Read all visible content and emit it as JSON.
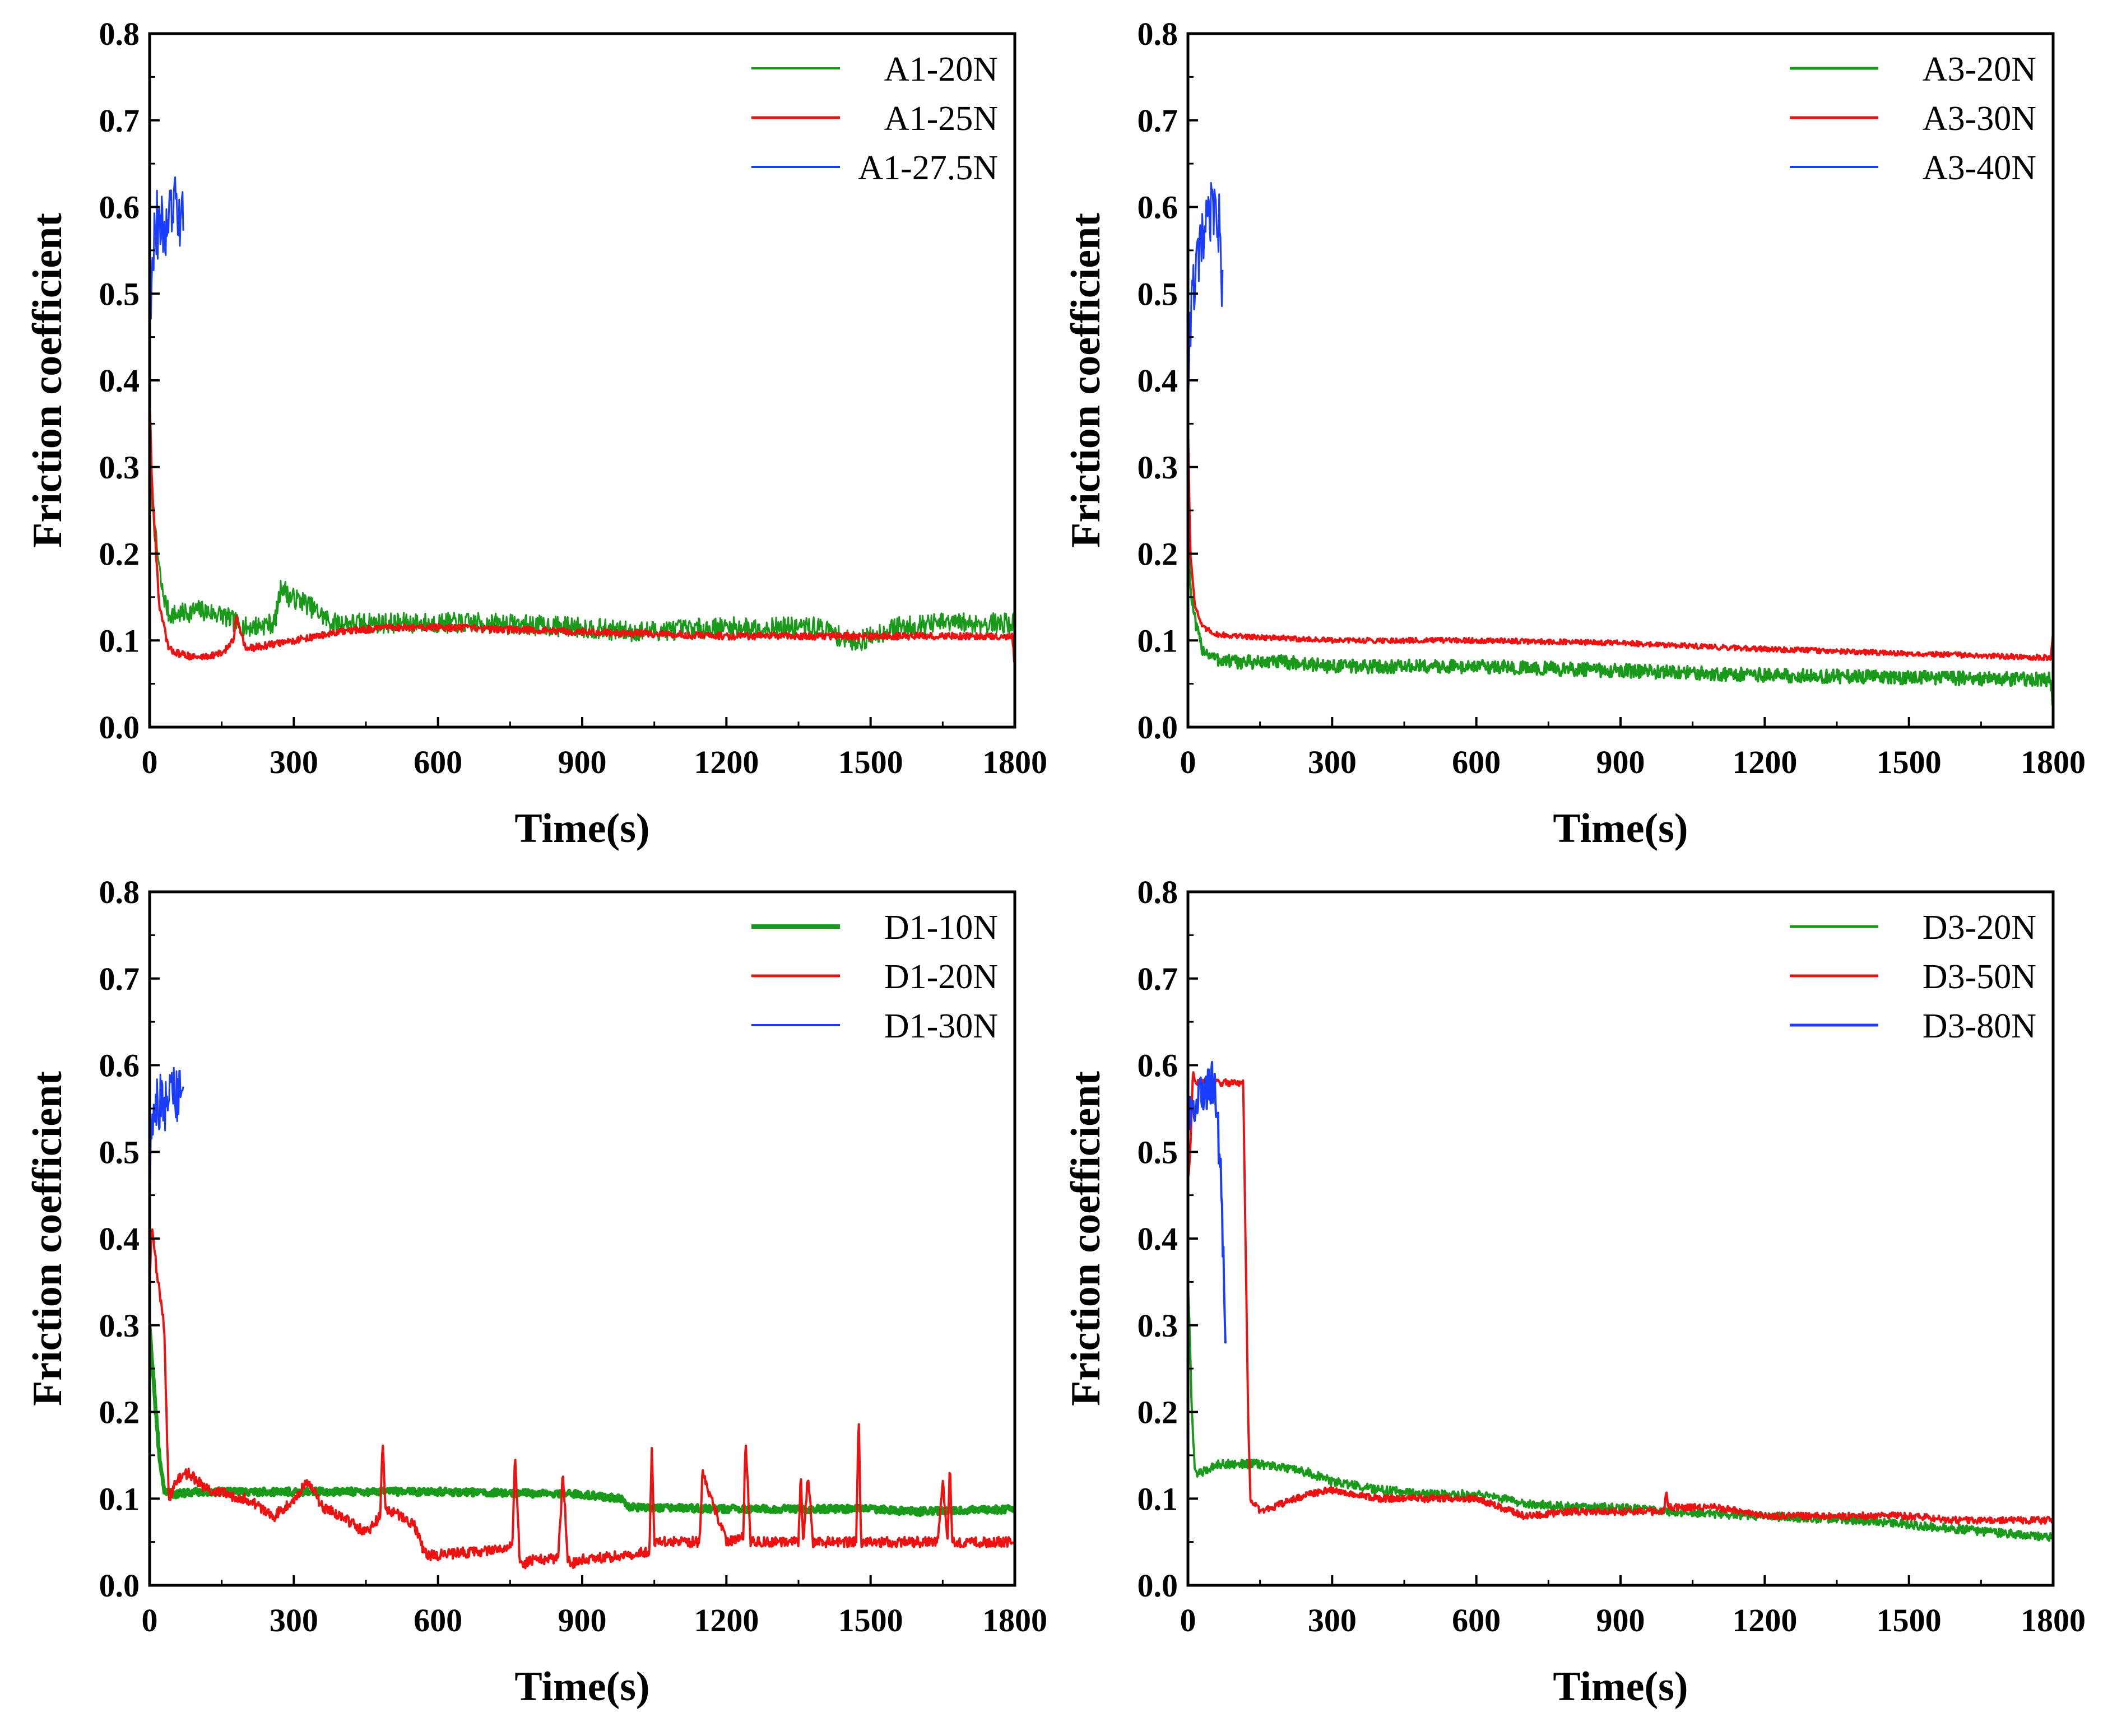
{
  "chart_data": [
    {
      "type": "line",
      "panel": "top-left",
      "xlabel": "Time(s)",
      "ylabel": "Friction coefficient",
      "xlim": [
        0,
        1800
      ],
      "ylim": [
        0,
        0.8
      ],
      "xticks": [
        "0",
        "300",
        "600",
        "900",
        "1200",
        "1500",
        "1800"
      ],
      "yticks": [
        "0.0",
        "0.1",
        "0.2",
        "0.3",
        "0.4",
        "0.5",
        "0.6",
        "0.7",
        "0.8"
      ],
      "legend_position": "top-right",
      "series": [
        {
          "name": "A1-20N",
          "color": "#1a9a1a",
          "width": 3,
          "noise": 0.012,
          "x": [
            0,
            10,
            25,
            40,
            60,
            100,
            150,
            180,
            200,
            260,
            275,
            290,
            320,
            380,
            500,
            700,
            900,
            1000,
            1200,
            1400,
            1450,
            1480,
            1550,
            1650,
            1800
          ],
          "y": [
            0.3,
            0.23,
            0.16,
            0.13,
            0.13,
            0.135,
            0.13,
            0.12,
            0.115,
            0.12,
            0.165,
            0.15,
            0.145,
            0.12,
            0.12,
            0.12,
            0.115,
            0.11,
            0.115,
            0.115,
            0.1,
            0.1,
            0.115,
            0.12,
            0.12
          ]
        },
        {
          "name": "A1-25N",
          "color": "#ee1111",
          "width": 4,
          "noise": 0.004,
          "x": [
            0,
            5,
            20,
            40,
            60,
            100,
            150,
            175,
            180,
            200,
            250,
            300,
            400,
            500,
            600,
            900,
            1200,
            1500,
            1795,
            1800
          ],
          "y": [
            0.38,
            0.28,
            0.14,
            0.09,
            0.085,
            0.08,
            0.085,
            0.1,
            0.13,
            0.09,
            0.095,
            0.1,
            0.11,
            0.115,
            0.115,
            0.11,
            0.105,
            0.105,
            0.105,
            0.07
          ]
        },
        {
          "name": "A1-27.5N",
          "color": "#1a3cff",
          "width": 3,
          "noise": 0.04,
          "x": [
            0,
            5,
            15,
            30,
            50,
            70
          ],
          "y": [
            0.45,
            0.55,
            0.58,
            0.57,
            0.6,
            0.58
          ]
        }
      ]
    },
    {
      "type": "line",
      "panel": "top-right",
      "xlabel": "Time(s)",
      "ylabel": "Friction coefficient",
      "xlim": [
        0,
        1800
      ],
      "ylim": [
        0,
        0.8
      ],
      "xticks": [
        "0",
        "300",
        "600",
        "900",
        "1200",
        "1500",
        "1800"
      ],
      "yticks": [
        "0.0",
        "0.1",
        "0.2",
        "0.3",
        "0.4",
        "0.5",
        "0.6",
        "0.7",
        "0.8"
      ],
      "legend_position": "top-right",
      "series": [
        {
          "name": "A3-20N",
          "color": "#1a9a1a",
          "width": 4,
          "noise": 0.008,
          "x": [
            0,
            5,
            15,
            30,
            60,
            100,
            200,
            300,
            600,
            900,
            1200,
            1500,
            1795,
            1800
          ],
          "y": [
            0.24,
            0.16,
            0.12,
            0.09,
            0.078,
            0.075,
            0.075,
            0.07,
            0.07,
            0.065,
            0.06,
            0.057,
            0.055,
            0.02
          ]
        },
        {
          "name": "A3-30N",
          "color": "#ee1111",
          "width": 4,
          "noise": 0.003,
          "x": [
            0,
            5,
            15,
            30,
            60,
            100,
            300,
            600,
            900,
            1200,
            1500,
            1795,
            1800
          ],
          "y": [
            0.35,
            0.2,
            0.14,
            0.115,
            0.107,
            0.105,
            0.1,
            0.1,
            0.097,
            0.09,
            0.085,
            0.08,
            0.11
          ]
        },
        {
          "name": "A3-40N",
          "color": "#1a3cff",
          "width": 3,
          "noise": 0.035,
          "x": [
            0,
            5,
            15,
            30,
            50,
            65,
            72
          ],
          "y": [
            0.38,
            0.47,
            0.52,
            0.56,
            0.6,
            0.58,
            0.5
          ]
        }
      ]
    },
    {
      "type": "line",
      "panel": "bottom-left",
      "xlabel": "Time(s)",
      "ylabel": "Friction coefficient",
      "xlim": [
        0,
        1800
      ],
      "ylim": [
        0,
        0.8
      ],
      "xticks": [
        "0",
        "300",
        "600",
        "900",
        "1200",
        "1500",
        "1800"
      ],
      "yticks": [
        "0.0",
        "0.1",
        "0.2",
        "0.3",
        "0.4",
        "0.5",
        "0.6",
        "0.7",
        "0.8"
      ],
      "legend_position": "top-right",
      "series": [
        {
          "name": "D1-10N",
          "color": "#1a9a1a",
          "width": 7,
          "noise": 0.004,
          "x": [
            0,
            10,
            20,
            30,
            50,
            100,
            300,
            600,
            900,
            980,
            1000,
            1200,
            1500,
            1600,
            1800
          ],
          "y": [
            0.3,
            0.22,
            0.15,
            0.11,
            0.105,
            0.108,
            0.108,
            0.108,
            0.105,
            0.1,
            0.09,
            0.088,
            0.088,
            0.085,
            0.088
          ]
        },
        {
          "name": "D1-20N",
          "color": "#ee1111",
          "width": 4,
          "noise": 0.006,
          "x": [
            0,
            5,
            15,
            30,
            40,
            55,
            80,
            120,
            200,
            260,
            300,
            330,
            360,
            400,
            450,
            480,
            485,
            490,
            550,
            570,
            580,
            600,
            700,
            755,
            760,
            770,
            780,
            800,
            850,
            860,
            870,
            880,
            900,
            1000,
            1040,
            1045,
            1050,
            1100,
            1145,
            1150,
            1200,
            1235,
            1240,
            1250,
            1300,
            1350,
            1355,
            1360,
            1370,
            1380,
            1400,
            1470,
            1475,
            1480,
            1500,
            1600,
            1640,
            1650,
            1660,
            1665,
            1670,
            1680,
            1800
          ],
          "y": [
            0.35,
            0.42,
            0.36,
            0.3,
            0.1,
            0.12,
            0.13,
            0.11,
            0.1,
            0.08,
            0.1,
            0.12,
            0.09,
            0.08,
            0.06,
            0.08,
            0.17,
            0.09,
            0.07,
            0.04,
            0.035,
            0.035,
            0.04,
            0.045,
            0.15,
            0.03,
            0.025,
            0.03,
            0.03,
            0.13,
            0.03,
            0.025,
            0.03,
            0.035,
            0.04,
            0.16,
            0.05,
            0.05,
            0.05,
            0.13,
            0.05,
            0.055,
            0.17,
            0.05,
            0.05,
            0.05,
            0.13,
            0.05,
            0.13,
            0.05,
            0.05,
            0.05,
            0.2,
            0.05,
            0.05,
            0.05,
            0.05,
            0.12,
            0.05,
            0.14,
            0.05,
            0.05,
            0.05
          ]
        },
        {
          "name": "D1-30N",
          "color": "#1a3cff",
          "width": 3,
          "noise": 0.035,
          "x": [
            0,
            5,
            15,
            30,
            50,
            70
          ],
          "y": [
            0.48,
            0.53,
            0.56,
            0.55,
            0.57,
            0.56
          ]
        }
      ]
    },
    {
      "type": "line",
      "panel": "bottom-right",
      "xlabel": "Time(s)",
      "ylabel": "Friction coefficient",
      "xlim": [
        0,
        1800
      ],
      "ylim": [
        0,
        0.8
      ],
      "xticks": [
        "0",
        "300",
        "600",
        "900",
        "1200",
        "1500",
        "1800"
      ],
      "yticks": [
        "0.0",
        "0.1",
        "0.2",
        "0.3",
        "0.4",
        "0.5",
        "0.6",
        "0.7",
        "0.8"
      ],
      "legend_position": "top-right",
      "series": [
        {
          "name": "D3-20N",
          "color": "#1a9a1a",
          "width": 4,
          "noise": 0.005,
          "x": [
            0,
            3,
            8,
            15,
            30,
            60,
            100,
            150,
            200,
            250,
            300,
            400,
            500,
            600,
            700,
            800,
            900,
            1000,
            1200,
            1400,
            1600,
            1800
          ],
          "y": [
            0.35,
            0.3,
            0.2,
            0.13,
            0.13,
            0.14,
            0.14,
            0.14,
            0.135,
            0.13,
            0.12,
            0.11,
            0.105,
            0.105,
            0.095,
            0.09,
            0.09,
            0.085,
            0.08,
            0.075,
            0.065,
            0.055
          ]
        },
        {
          "name": "D3-50N",
          "color": "#ee1111",
          "width": 4,
          "noise": 0.004,
          "x": [
            0,
            5,
            10,
            20,
            50,
            100,
            115,
            125,
            130,
            150,
            200,
            250,
            300,
            400,
            500,
            600,
            700,
            800,
            900,
            990,
            995,
            1000,
            1100,
            1200,
            1300,
            1400,
            1500,
            1600,
            1700,
            1800
          ],
          "y": [
            0.47,
            0.5,
            0.59,
            0.58,
            0.58,
            0.58,
            0.58,
            0.2,
            0.1,
            0.085,
            0.095,
            0.105,
            0.11,
            0.1,
            0.1,
            0.1,
            0.08,
            0.085,
            0.085,
            0.085,
            0.11,
            0.09,
            0.09,
            0.08,
            0.08,
            0.08,
            0.08,
            0.075,
            0.075,
            0.075
          ]
        },
        {
          "name": "D3-80N",
          "color": "#1a3cff",
          "width": 4,
          "noise": 0.025,
          "x": [
            0,
            10,
            30,
            50,
            60,
            65,
            70,
            75,
            78
          ],
          "y": [
            0.53,
            0.55,
            0.57,
            0.58,
            0.56,
            0.5,
            0.45,
            0.35,
            0.26
          ]
        }
      ]
    }
  ]
}
